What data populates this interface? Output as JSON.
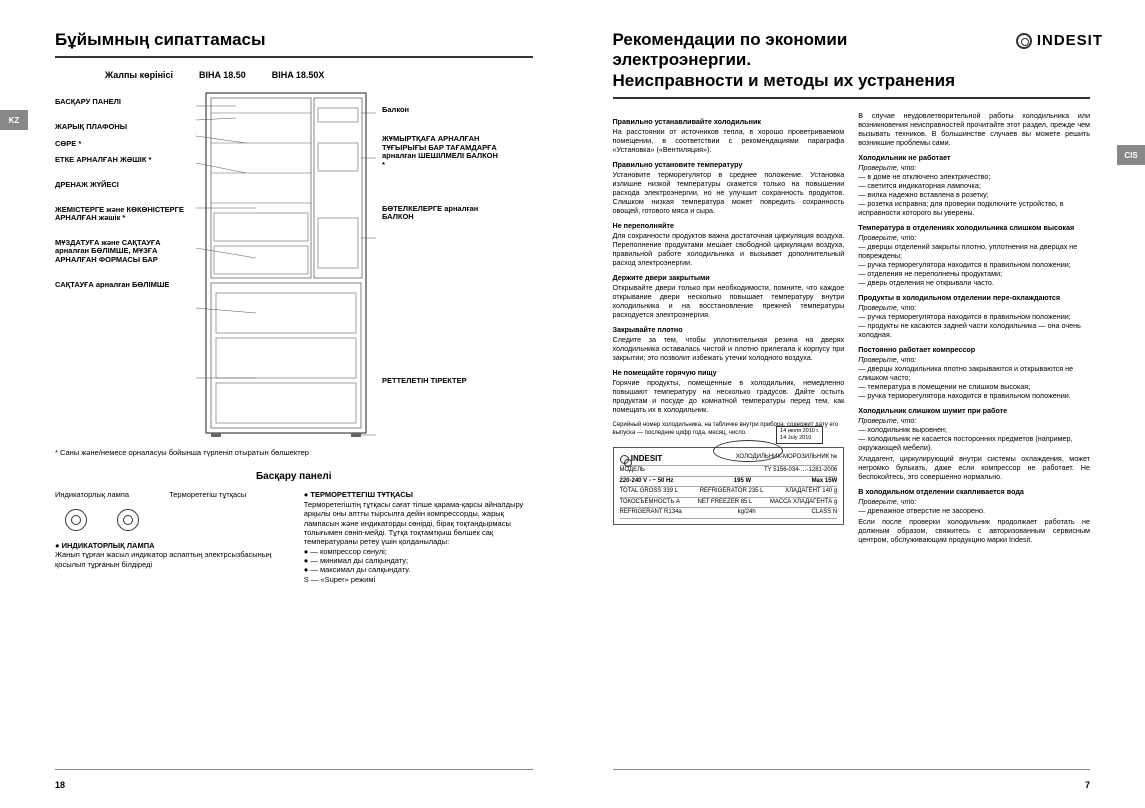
{
  "left": {
    "tab": "KZ",
    "title": "Бұйымның сипаттамасы",
    "models_label": "Жалпы көрінісі",
    "models": [
      "BIHA 18.50",
      "BIHA 18.50X"
    ],
    "labels_left": [
      "БАСҚАРУ ПАНЕЛІ",
      "ЖАРЫҚ ПЛАФОНЫ",
      "СӨРЕ *",
      "ЕТКЕ АРНАЛҒАН ЖӘШІК *",
      "ДРЕНАЖ ЖҮЙЕСІ",
      "ЖЕМІСТЕРГЕ және КӨКӨНІСТЕРГЕ АРНАЛҒАН жәшік *",
      "МҰЗДАТУҒА және САҚТАУҒА арналған БӨЛІМШЕ, МҰЗҒА АРНАЛҒАН ФОРМАСЫ БАР",
      "САҚТАУҒА арналған БӨЛІМШЕ"
    ],
    "labels_right": [
      "Балкон",
      "ЖҰМЫРТҚАҒА АРНАЛҒАН ТҰҒЫРЫҒЫ БАР ТАҒАМДАРҒА арналған ШЕШІЛМЕЛІ БАЛКОН *",
      "БӨТЕЛКЕЛЕРГЕ арналған БАЛКОН",
      "РЕТТЕЛЕТІН ТІРЕКТЕР"
    ],
    "note": "* Саны және/немесе орналасуы бойынша түрленіп отыратын бөлшектер",
    "panel_heading": "Басқару панелі",
    "panel_labels": [
      "Индикаторлық лампа",
      "Терморетегіш тұтқасы"
    ],
    "panel_left": {
      "title": "● ИНДИКАТОРЛЫҚ ЛАМПА",
      "body": "Жанып тұрған жасыл индикатор аспаптың электрсызбасының қосылып тұрғанын білдіреді"
    },
    "panel_right": {
      "title": "● ТЕРМОРЕТТЕГІШ ТҰТҚАСЫ",
      "body": "Терморетегіштің тұтқасы сағат тілше қарама-қарсы айналдыру арқылы оны аптты тырсылға дейін компрессорды, жарық лампасын және индикаторды сөнірді, бірақ тоқтандырмасы толығымен сөніп-мейді. Тұтқа тоқтамтқыш бөлшек сақ температураны ретеу үшін қолданылады:",
      "items": [
        "● — компрессор сөнулі;",
        "● — минимал ды салқындату;",
        "● — максимал ды салқындату.",
        "S — «Super» режимі"
      ]
    },
    "page_num": "18"
  },
  "right": {
    "tab": "CIS",
    "brand": "INDESIT",
    "title": "Рекомендации по экономии электроэнергии.\nНеисправности и методы их устранения",
    "col1": [
      {
        "t": "Правильно устанавливайте холодильник",
        "b": "На расстоянии от источников тепла, в хорошо проветриваемом помещении, в соответствии с рекомендациями параграфа «Установка» («Вентиляция»)."
      },
      {
        "t": "Правильно установите температуру",
        "b": "Установите терморегулятор в среднее положение. Установка излишне низкой температуры скажется только на повышении расхода электроэнергии, но не улучшит сохранность продуктов. Слишком низкая температура может повредить сохранность овощей, готового мяса и сыра."
      },
      {
        "t": "Не переполняйте",
        "b": "Для сохранности продуктов важна достаточная циркуляция воздуха. Переполнение продуктами мешает свободной циркуляции воздуха, правильной работе холодильника и вызывает дополнительный расход электроэнергии."
      },
      {
        "t": "Держите двери закрытыми",
        "b": "Открывайте двери только при необходимости, помните, что каждое открывание двери несколько повышает температуру внутри холодильника и на восстановление прежней температуры расходуется электроэнергия."
      },
      {
        "t": "Закрывайте плотно",
        "b": "Следите за тем, чтобы уплотнительная резина на дверях холодильника оставалась чистой и плотно прилегала к корпусу при закрытии; это позволит избежать утечки холодного воздуха."
      },
      {
        "t": "Не помещайте горячую пищу",
        "b": "Горячие продукты, помещенные в холодильник, немедленно повышают температуру на несколько градусов. Дайте остыть продуктам и посуде до комнатной температуры перед тем, как помещать их в холодильник."
      }
    ],
    "col2_intro": "В случае неудовлетворительной работы холодильника или возникновения неисправностей прочитайте этот раздел, прежде чем вызывать техников. В большинстве случаев вы можете решить возникшие проблемы сами.",
    "col2": [
      {
        "t": "Холодильник не работает",
        "c": "Проверьте, что:",
        "items": [
          "— в доме не отключено электричество;",
          "— светится индикаторная лампочка;",
          "— вилка надежно вставлена в розетку;",
          "— розетка исправна; для проверки подключите устройство, в исправности которого вы уверены."
        ]
      },
      {
        "t": "Температура в отделениях холодильника слишком высокая",
        "c": "Проверьте, что:",
        "items": [
          "— дверцы отделений закрыты плотно, уплотнения на дверцах не повреждены;",
          "— ручка терморегулятора находится в правильном положении;",
          "— отделения не переполнены продуктами;",
          "— дверь отделения не открывали часто."
        ]
      },
      {
        "t": "Продукты в холодильном отделении пере-охлаждаются",
        "c": "Проверьте, что:",
        "items": [
          "— ручка терморегулятора находится в правильном положении;",
          "— продукты не касаются задней части холодильника — она очень холодная."
        ]
      },
      {
        "t": "Постоянно работает компрессор",
        "c": "Проверьте, что:",
        "items": [
          "— дверцы холодильника плотно закрываются и открываются не слишком часто;",
          "— температура в помещении не слишком высокая;",
          "— ручка терморегулятора находится в правильном положении."
        ]
      },
      {
        "t": "Холодильник слишком шумит при работе",
        "c": "Проверьте, что:",
        "items": [
          "— холодильник выровнен;",
          "— холодильник не касается посторонних предметов (например, окружающей мебели)."
        ],
        "extra": "Хладагент, циркулирующий внутри системы охлаждения, может негромко булькать, даже если компрессор не работает. Не беспокойтесь, это совершенно нормально."
      },
      {
        "t": "В холодильном отделении скапливается вода",
        "c": "Проверьте, что:",
        "items": [
          "— дренажное отверстие не засорено."
        ],
        "extra": "Если после проверки холодильник продолжает работать не должным образом, свяжитесь с авторизованным сервисным центром, обслуживающим продукцию марки Indesit."
      }
    ],
    "rating_note": "Серийный номер холодильника, на табличке внутри прибора, содержит дату его выпуска — последние цифр года, месяц, число.",
    "rating": {
      "brand": "INDESIT",
      "model_label": "МОДЕЛЬ",
      "std": "TY 5156-034-…-1281-2006",
      "voltage": "220-240 V - ~ 50 Hz",
      "power": "195 W",
      "max": "Max 15W",
      "callout": "14 июля 2010 г.\n14 July 2010",
      "date_labels": "Число Дата\nМесяц Month\nГод Year"
    },
    "page_num": "7"
  },
  "colors": {
    "text": "#222222",
    "rule": "#555555",
    "tab_bg": "#888888"
  }
}
